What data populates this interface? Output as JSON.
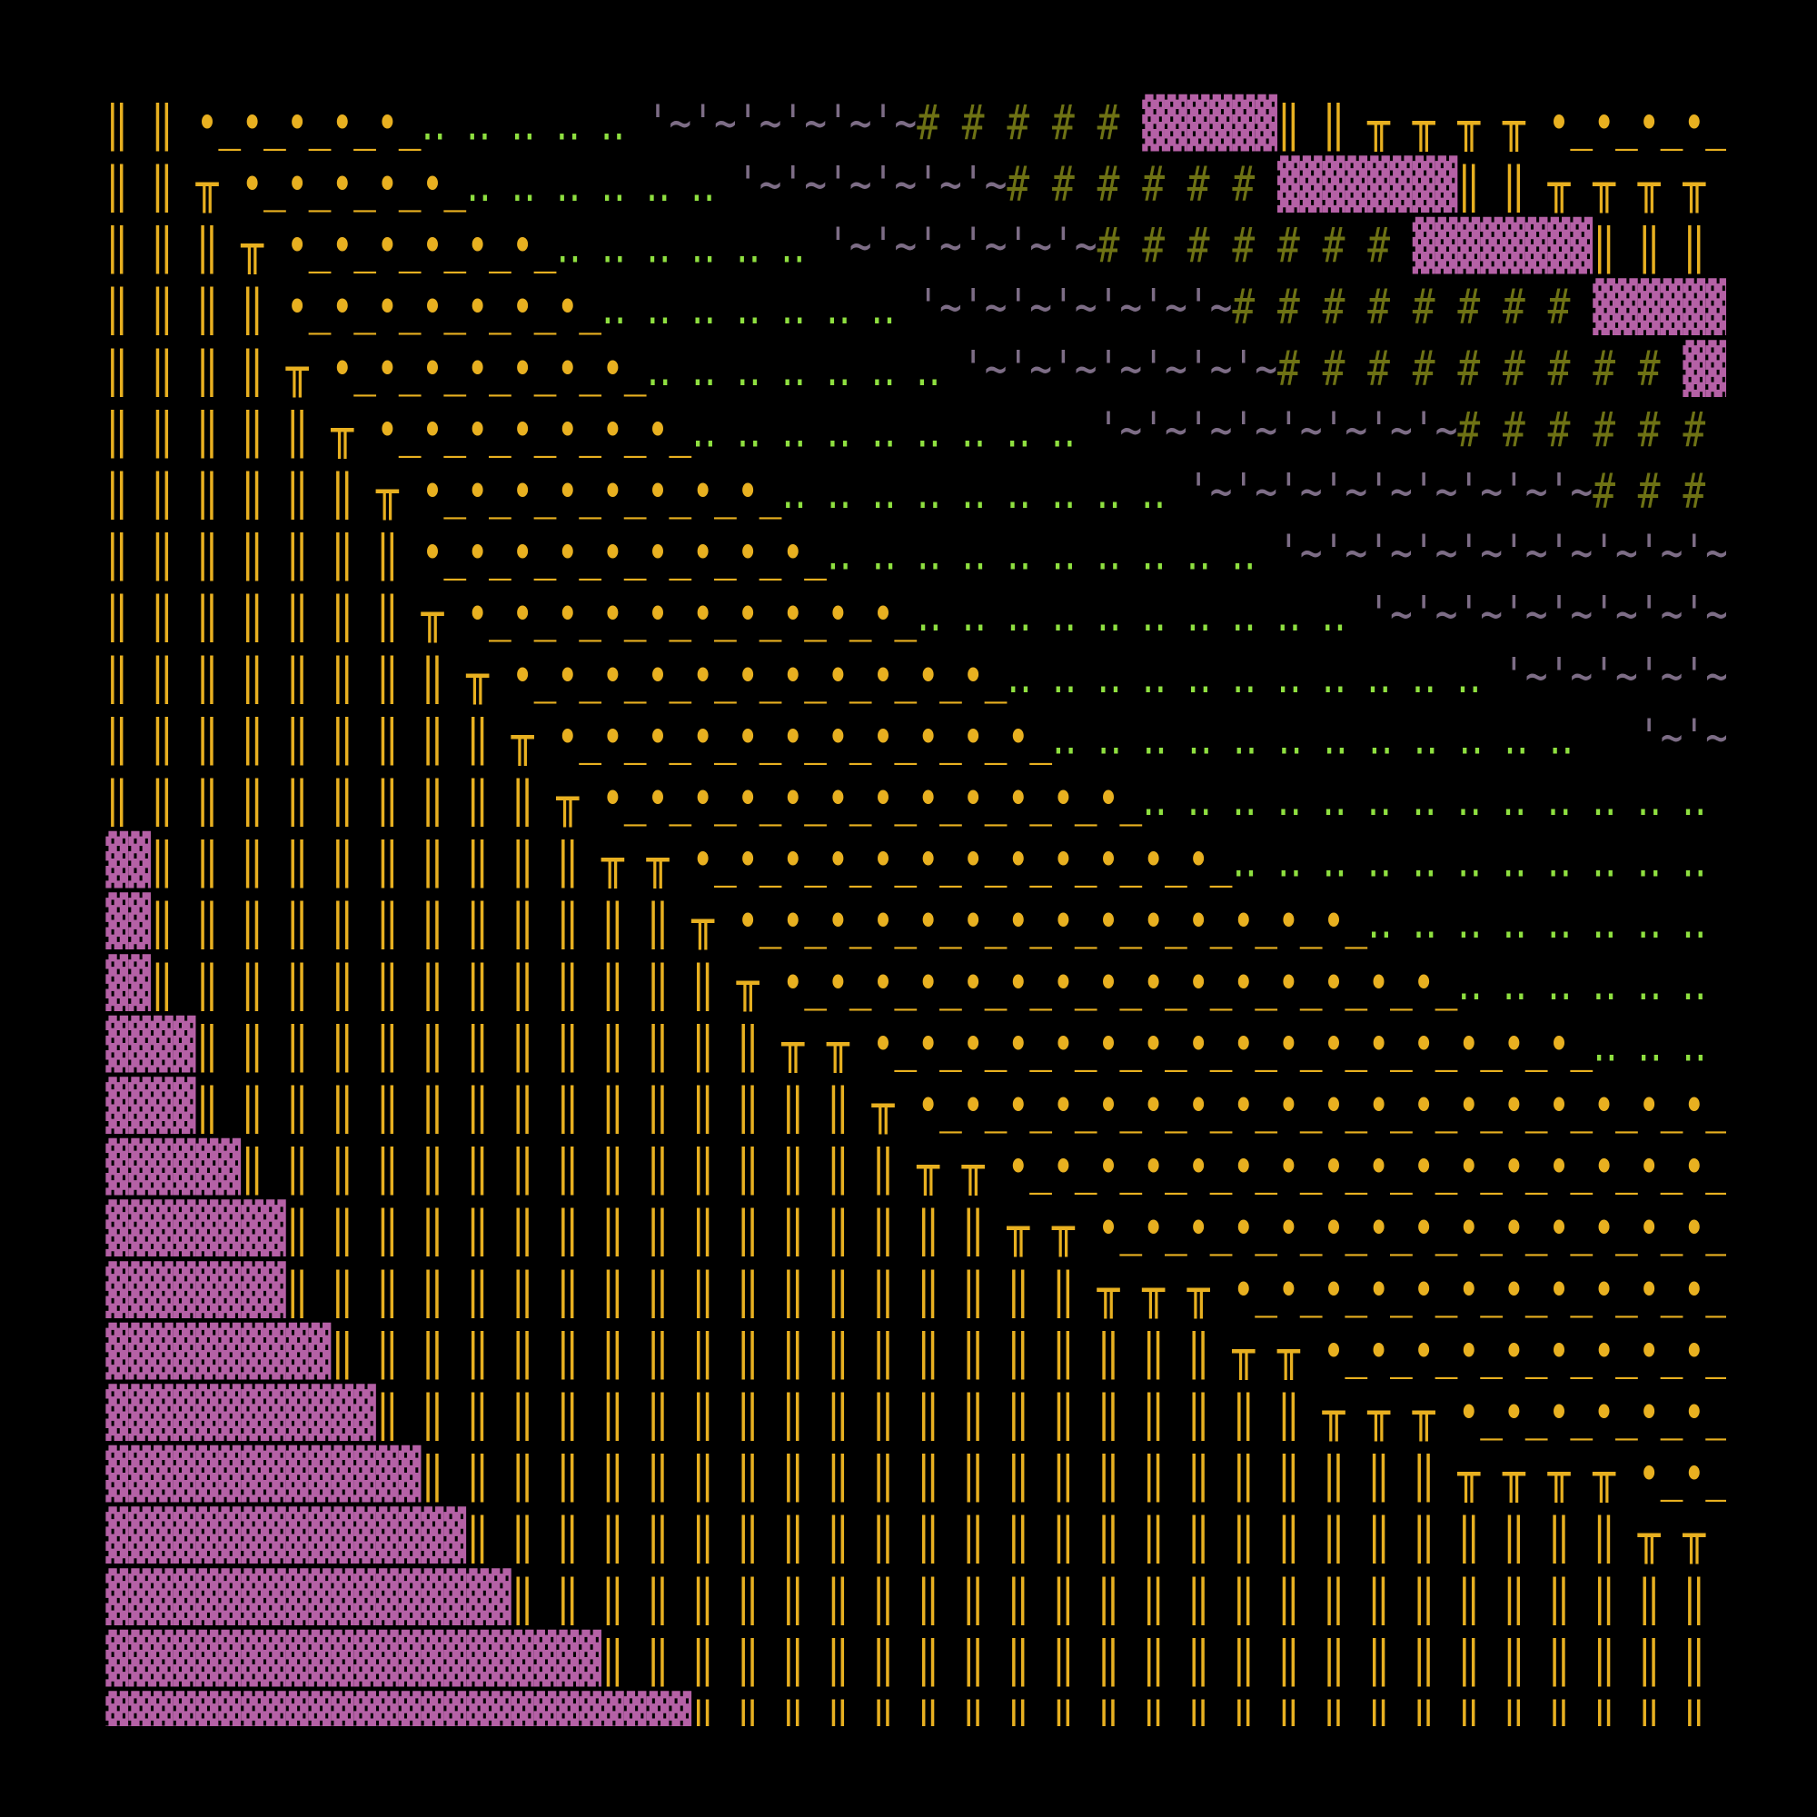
{
  "grid": {
    "colors": {
      "yellow": "#e8b020",
      "pink": "#b561a6",
      "green": "#8fe040",
      "gray": "#7d6d86",
      "olive": "#6e7214"
    },
    "rows": [
      [
        {
          "text": "‖ ‖ •_•_•_•_•_",
          "color": "yellow"
        },
        {
          "text": "‥ ‥ ‥ ‥ ‥ ",
          "color": "green"
        },
        {
          "text": "'~'~'~'~'~'~",
          "color": "gray"
        },
        {
          "text": "# # # # # ",
          "color": "olive"
        },
        {
          "text": "▓▓▓▓▓▓",
          "color": "pink"
        },
        {
          "text": "‖ ‖ ╥ ╥ ╥ ╥ •_•_•_•_",
          "color": "yellow"
        }
      ],
      [
        {
          "text": "‖ ‖ ╥ •_•_•_•_•_",
          "color": "yellow"
        },
        {
          "text": "‥ ‥ ‥ ‥ ‥ ‥ ",
          "color": "green"
        },
        {
          "text": "'~'~'~'~'~'~",
          "color": "gray"
        },
        {
          "text": "# # # # # # ",
          "color": "olive"
        },
        {
          "text": "▓▓▓▓▓▓▓▓",
          "color": "pink"
        },
        {
          "text": "‖ ‖ ╥ ╥ ╥ ╥ ",
          "color": "yellow"
        }
      ],
      [
        {
          "text": "‖ ‖ ‖ ╥ •_•_•_•_•_•_",
          "color": "yellow"
        },
        {
          "text": "‥ ‥ ‥ ‥ ‥ ‥ ",
          "color": "green"
        },
        {
          "text": "'~'~'~'~'~'~",
          "color": "gray"
        },
        {
          "text": "# # # # # # # ",
          "color": "olive"
        },
        {
          "text": "▓▓▓▓▓▓▓▓",
          "color": "pink"
        },
        {
          "text": "‖ ‖ ‖ ",
          "color": "yellow"
        }
      ],
      [
        {
          "text": "‖ ‖ ‖ ‖ •_•_•_•_•_•_•_",
          "color": "yellow"
        },
        {
          "text": "‥ ‥ ‥ ‥ ‥ ‥ ‥ ",
          "color": "green"
        },
        {
          "text": "'~'~'~'~'~'~'~",
          "color": "gray"
        },
        {
          "text": "# # # # # # # # ",
          "color": "olive"
        },
        {
          "text": "▓▓▓▓▓▓",
          "color": "pink"
        }
      ],
      [
        {
          "text": "‖ ‖ ‖ ‖ ╥ •_•_•_•_•_•_•_",
          "color": "yellow"
        },
        {
          "text": "‥ ‥ ‥ ‥ ‥ ‥ ‥ ",
          "color": "green"
        },
        {
          "text": "'~'~'~'~'~'~'~",
          "color": "gray"
        },
        {
          "text": "# # # # # # # # # ",
          "color": "olive"
        },
        {
          "text": "▓▓",
          "color": "pink"
        }
      ],
      [
        {
          "text": "‖ ‖ ‖ ‖ ‖ ╥ •_•_•_•_•_•_•_",
          "color": "yellow"
        },
        {
          "text": "‥ ‥ ‥ ‥ ‥ ‥ ‥ ‥ ‥ ",
          "color": "green"
        },
        {
          "text": "'~'~'~'~'~'~'~'~",
          "color": "gray"
        },
        {
          "text": "# # # # # # ",
          "color": "olive"
        }
      ],
      [
        {
          "text": "‖ ‖ ‖ ‖ ‖ ‖ ╥ •_•_•_•_•_•_•_•_",
          "color": "yellow"
        },
        {
          "text": "‥ ‥ ‥ ‥ ‥ ‥ ‥ ‥ ‥ ",
          "color": "green"
        },
        {
          "text": "'~'~'~'~'~'~'~'~'~",
          "color": "gray"
        },
        {
          "text": "# # # ",
          "color": "olive"
        }
      ],
      [
        {
          "text": "‖ ‖ ‖ ‖ ‖ ‖ ‖ •_•_•_•_•_•_•_•_•_",
          "color": "yellow"
        },
        {
          "text": "‥ ‥ ‥ ‥ ‥ ‥ ‥ ‥ ‥ ‥ ",
          "color": "green"
        },
        {
          "text": "'~'~'~'~'~'~'~'~'~'~",
          "color": "gray"
        }
      ],
      [
        {
          "text": "‖ ‖ ‖ ‖ ‖ ‖ ‖ ╥ •_•_•_•_•_•_•_•_•_•_",
          "color": "yellow"
        },
        {
          "text": "‥ ‥ ‥ ‥ ‥ ‥ ‥ ‥ ‥ ‥ ",
          "color": "green"
        },
        {
          "text": "'~'~'~'~'~'~'~'~",
          "color": "gray"
        }
      ],
      [
        {
          "text": "‖ ‖ ‖ ‖ ‖ ‖ ‖ ‖ ╥ •_•_•_•_•_•_•_•_•_•_•_",
          "color": "yellow"
        },
        {
          "text": "‥ ‥ ‥ ‥ ‥ ‥ ‥ ‥ ‥ ‥ ‥ ",
          "color": "green"
        },
        {
          "text": "'~'~'~'~'~",
          "color": "gray"
        }
      ],
      [
        {
          "text": "‖ ‖ ‖ ‖ ‖ ‖ ‖ ‖ ‖ ╥ •_•_•_•_•_•_•_•_•_•_•_",
          "color": "yellow"
        },
        {
          "text": "‥ ‥ ‥ ‥ ‥ ‥ ‥ ‥ ‥ ‥ ‥ ‥   ",
          "color": "green"
        },
        {
          "text": "'~'~",
          "color": "gray"
        }
      ],
      [
        {
          "text": "‖ ‖ ‖ ‖ ‖ ‖ ‖ ‖ ‖ ‖ ╥ •_•_•_•_•_•_•_•_•_•_•_•_",
          "color": "yellow"
        },
        {
          "text": "‥ ‥ ‥ ‥ ‥ ‥ ‥ ‥ ‥ ‥ ‥ ‥ ‥ ",
          "color": "green"
        }
      ],
      [
        {
          "text": "▓▓",
          "color": "pink"
        },
        {
          "text": "‖ ‖ ‖ ‖ ‖ ‖ ‖ ‖ ‖ ‖ ╥ ╥ •_•_•_•_•_•_•_•_•_•_•_•_",
          "color": "yellow"
        },
        {
          "text": "‥ ‥ ‥ ‥ ‥ ‥ ‥ ‥ ‥ ‥ ‥ ",
          "color": "green"
        }
      ],
      [
        {
          "text": "▓▓",
          "color": "pink"
        },
        {
          "text": "‖ ‖ ‖ ‖ ‖ ‖ ‖ ‖ ‖ ‖ ‖ ‖ ╥ •_•_•_•_•_•_•_•_•_•_•_•_•_•_",
          "color": "yellow"
        },
        {
          "text": "‥ ‥ ‥ ‥ ‥ ‥ ‥ ‥ ",
          "color": "green"
        }
      ],
      [
        {
          "text": "▓▓",
          "color": "pink"
        },
        {
          "text": "‖ ‖ ‖ ‖ ‖ ‖ ‖ ‖ ‖ ‖ ‖ ‖ ‖ ╥ •_•_•_•_•_•_•_•_•_•_•_•_•_•_•_",
          "color": "yellow"
        },
        {
          "text": "‥ ‥ ‥ ‥ ‥ ‥ ",
          "color": "green"
        }
      ],
      [
        {
          "text": "▓▓▓▓",
          "color": "pink"
        },
        {
          "text": "‖ ‖ ‖ ‖ ‖ ‖ ‖ ‖ ‖ ‖ ‖ ‖ ‖ ╥ ╥ •_•_•_•_•_•_•_•_•_•_•_•_•_•_•_•_",
          "color": "yellow"
        },
        {
          "text": "‥ ‥ ‥ ",
          "color": "green"
        }
      ],
      [
        {
          "text": "▓▓▓▓",
          "color": "pink"
        },
        {
          "text": "‖ ‖ ‖ ‖ ‖ ‖ ‖ ‖ ‖ ‖ ‖ ‖ ‖ ‖ ‖ ╥ •_•_•_•_•_•_•_•_•_•_•_•_•_•_•_•_•_•_",
          "color": "yellow"
        }
      ],
      [
        {
          "text": "▓▓▓▓▓▓",
          "color": "pink"
        },
        {
          "text": "‖ ‖ ‖ ‖ ‖ ‖ ‖ ‖ ‖ ‖ ‖ ‖ ‖ ‖ ‖ ╥ ╥ •_•_•_•_•_•_•_•_•_•_•_•_•_•_•_•_",
          "color": "yellow"
        }
      ],
      [
        {
          "text": "▓▓▓▓▓▓▓▓",
          "color": "pink"
        },
        {
          "text": "‖ ‖ ‖ ‖ ‖ ‖ ‖ ‖ ‖ ‖ ‖ ‖ ‖ ‖ ‖ ‖ ╥ ╥ •_•_•_•_•_•_•_•_•_•_•_•_•_•_",
          "color": "yellow"
        }
      ],
      [
        {
          "text": "▓▓▓▓▓▓▓▓",
          "color": "pink"
        },
        {
          "text": "‖ ‖ ‖ ‖ ‖ ‖ ‖ ‖ ‖ ‖ ‖ ‖ ‖ ‖ ‖ ‖ ‖ ‖ ╥ ╥ ╥ •_•_•_•_•_•_•_•_•_•_•_",
          "color": "yellow"
        }
      ],
      [
        {
          "text": "▓▓▓▓▓▓▓▓▓▓",
          "color": "pink"
        },
        {
          "text": "‖ ‖ ‖ ‖ ‖ ‖ ‖ ‖ ‖ ‖ ‖ ‖ ‖ ‖ ‖ ‖ ‖ ‖ ‖ ‖ ╥ ╥ •_•_•_•_•_•_•_•_•_",
          "color": "yellow"
        }
      ],
      [
        {
          "text": "▓▓▓▓▓▓▓▓▓▓▓▓",
          "color": "pink"
        },
        {
          "text": "‖ ‖ ‖ ‖ ‖ ‖ ‖ ‖ ‖ ‖ ‖ ‖ ‖ ‖ ‖ ‖ ‖ ‖ ‖ ‖ ‖ ╥ ╥ ╥ •_•_•_•_•_•_",
          "color": "yellow"
        }
      ],
      [
        {
          "text": "▓▓▓▓▓▓▓▓▓▓▓▓▓▓",
          "color": "pink"
        },
        {
          "text": "‖ ‖ ‖ ‖ ‖ ‖ ‖ ‖ ‖ ‖ ‖ ‖ ‖ ‖ ‖ ‖ ‖ ‖ ‖ ‖ ‖ ‖ ‖ ╥ ╥ ╥ ╥ •_•_",
          "color": "yellow"
        }
      ],
      [
        {
          "text": "▓▓▓▓▓▓▓▓▓▓▓▓▓▓▓▓",
          "color": "pink"
        },
        {
          "text": "‖ ‖ ‖ ‖ ‖ ‖ ‖ ‖ ‖ ‖ ‖ ‖ ‖ ‖ ‖ ‖ ‖ ‖ ‖ ‖ ‖ ‖ ‖ ‖ ‖ ‖ ╥ ╥ ",
          "color": "yellow"
        }
      ],
      [
        {
          "text": "▓▓▓▓▓▓▓▓▓▓▓▓▓▓▓▓▓▓",
          "color": "pink"
        },
        {
          "text": "‖ ‖ ‖ ‖ ‖ ‖ ‖ ‖ ‖ ‖ ‖ ‖ ‖ ‖ ‖ ‖ ‖ ‖ ‖ ‖ ‖ ‖ ‖ ‖ ‖ ‖ ‖ ",
          "color": "yellow"
        }
      ],
      [
        {
          "text": "▓▓▓▓▓▓▓▓▓▓▓▓▓▓▓▓▓▓▓▓▓▓",
          "color": "pink"
        },
        {
          "text": "‖ ‖ ‖ ‖ ‖ ‖ ‖ ‖ ‖ ‖ ‖ ‖ ‖ ‖ ‖ ‖ ‖ ‖ ‖ ‖ ‖ ‖ ‖ ‖ ‖ ",
          "color": "yellow"
        }
      ],
      [
        {
          "text": "▓▓▓▓▓▓▓▓▓▓▓▓▓▓▓▓▓▓▓▓▓▓▓▓▓▓",
          "color": "pink"
        },
        {
          "text": "‖ ‖ ‖ ‖ ‖ ‖ ‖ ‖ ‖ ‖ ‖ ‖ ‖ ‖ ‖ ‖ ‖ ‖ ‖ ‖ ‖ ‖ ‖ ",
          "color": "yellow"
        }
      ]
    ]
  }
}
